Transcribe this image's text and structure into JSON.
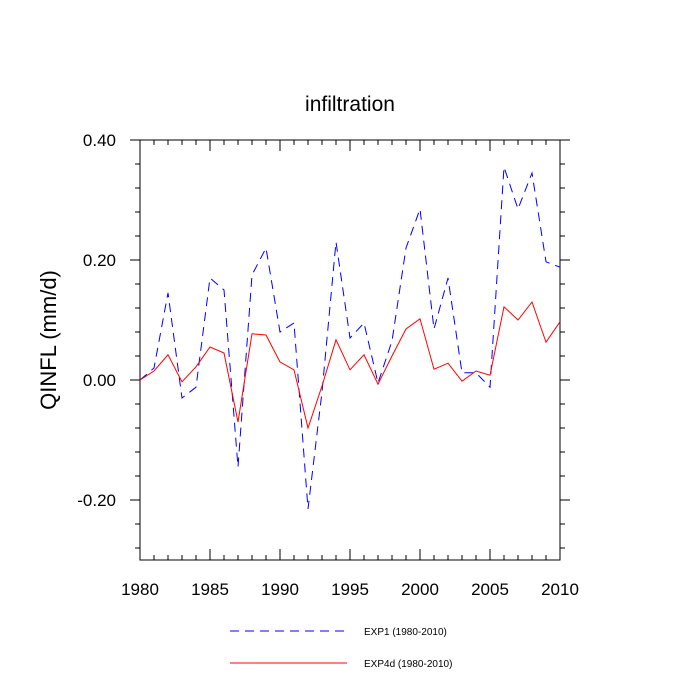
{
  "chart_data": {
    "type": "line",
    "title": "infiltration",
    "xlabel": "",
    "ylabel": "QINFL  (mm/d)",
    "xlim": [
      1980,
      2010
    ],
    "ylim": [
      -0.3,
      0.4
    ],
    "x_ticks": [
      1980,
      1985,
      1990,
      1995,
      2000,
      2005,
      2010
    ],
    "x_tick_labels": [
      "1980",
      "1985",
      "1990",
      "1995",
      "2000",
      "2005",
      "2010"
    ],
    "y_ticks": [
      -0.2,
      0.0,
      0.2,
      0.4
    ],
    "y_tick_labels": [
      "-0.20",
      "0.00",
      "0.20",
      "0.40"
    ],
    "legend_position": "bottom",
    "x": [
      1980,
      1981,
      1982,
      1983,
      1984,
      1985,
      1986,
      1987,
      1988,
      1989,
      1990,
      1991,
      1992,
      1993,
      1994,
      1995,
      1996,
      1997,
      1998,
      1999,
      2000,
      2001,
      2002,
      2003,
      2004,
      2005,
      2006,
      2007,
      2008,
      2009,
      2010
    ],
    "series": [
      {
        "name": "EXP1 (1980-2010)",
        "color": "#0000ff",
        "dash": "dashed",
        "values": [
          0.0,
          0.02,
          0.145,
          -0.03,
          -0.012,
          0.17,
          0.15,
          -0.145,
          0.175,
          0.22,
          0.08,
          0.095,
          -0.215,
          -0.02,
          0.23,
          0.07,
          0.095,
          -0.005,
          0.065,
          0.22,
          0.285,
          0.085,
          0.17,
          0.012,
          0.012,
          -0.012,
          0.355,
          0.285,
          0.345,
          0.197,
          0.188
        ]
      },
      {
        "name": "EXP4d (1980-2010)",
        "color": "#ff0000",
        "dash": "solid",
        "values": [
          0.0,
          0.015,
          0.042,
          -0.003,
          0.022,
          0.055,
          0.045,
          -0.07,
          0.077,
          0.075,
          0.03,
          0.017,
          -0.08,
          -0.01,
          0.067,
          0.017,
          0.042,
          -0.007,
          0.04,
          0.085,
          0.102,
          0.018,
          0.028,
          -0.002,
          0.015,
          0.008,
          0.122,
          0.1,
          0.13,
          0.063,
          0.097
        ]
      }
    ]
  }
}
